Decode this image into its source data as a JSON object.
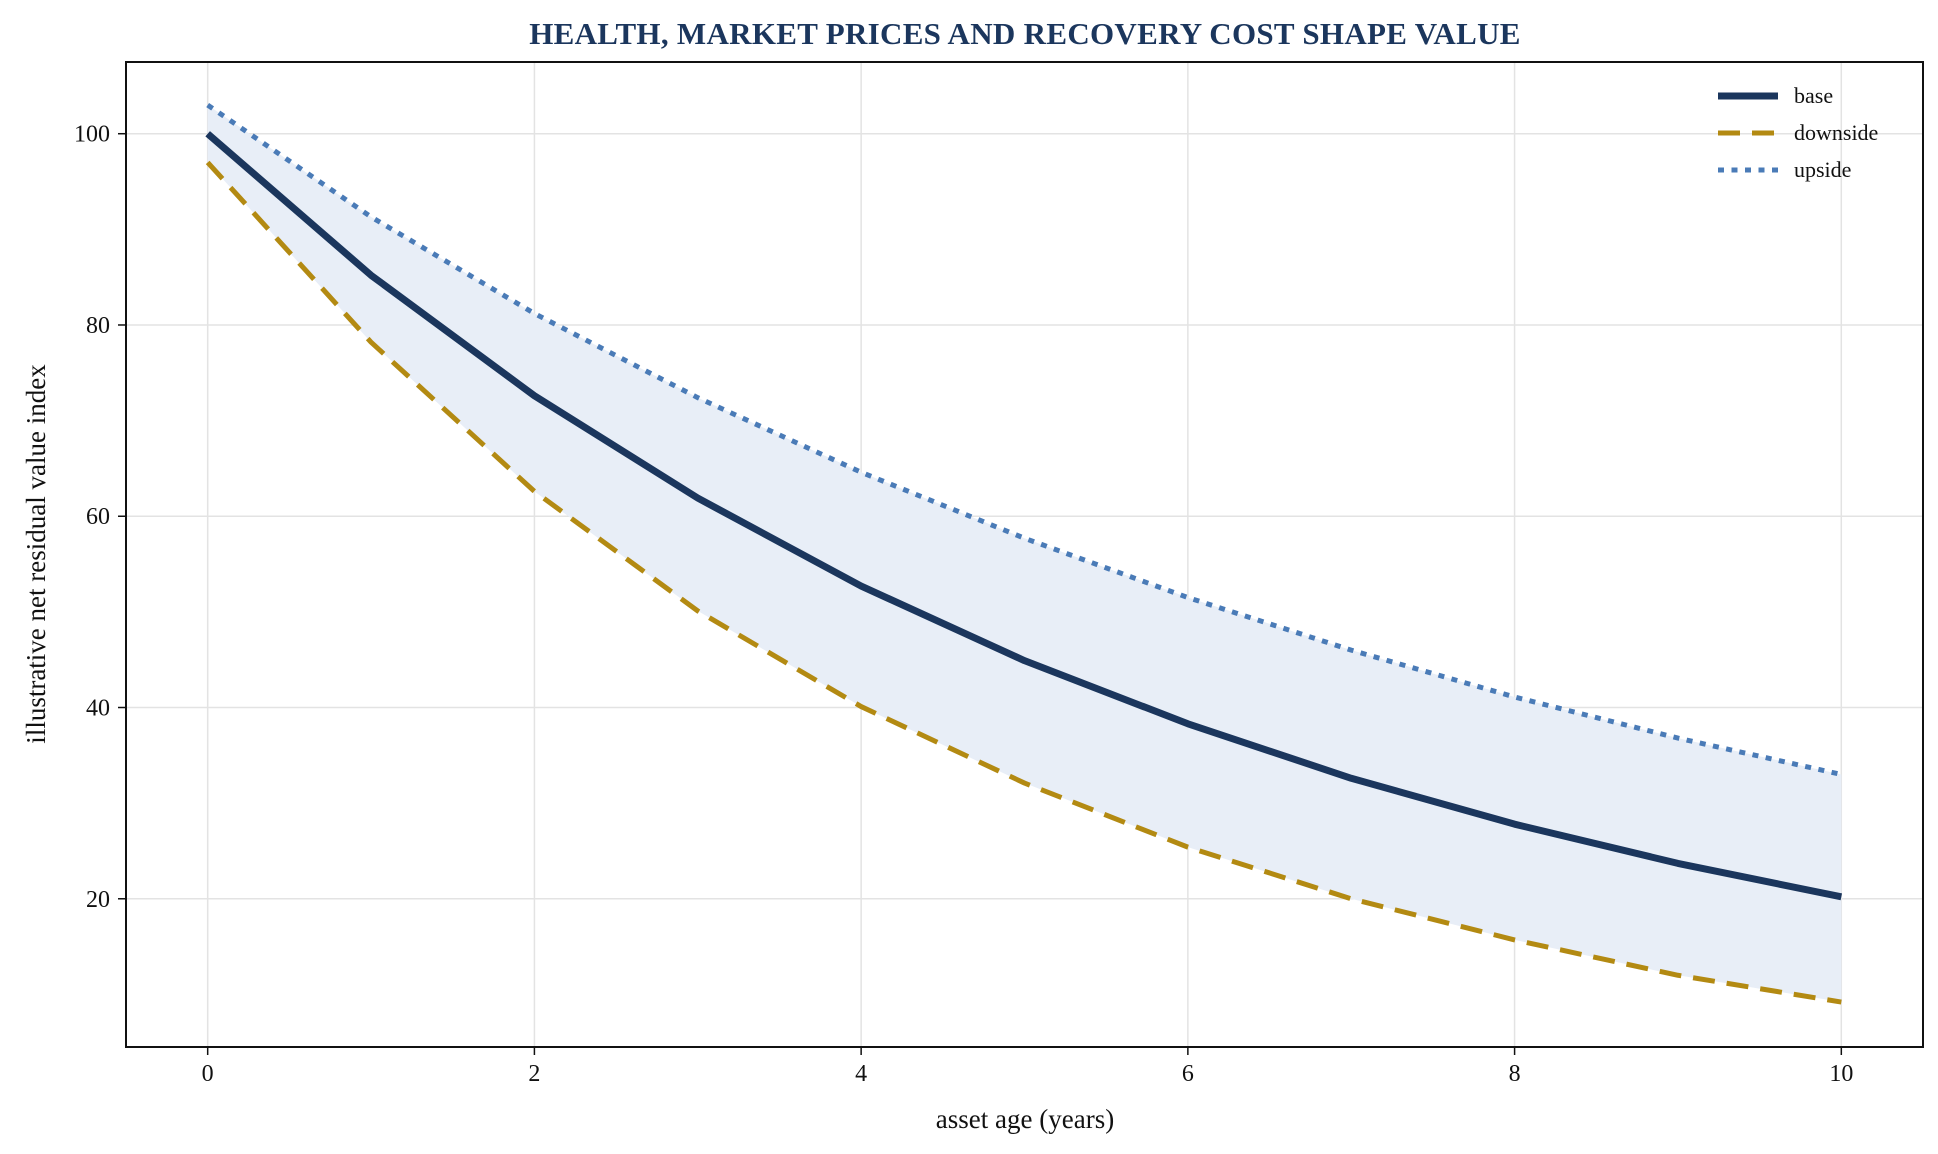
{
  "chart_data": {
    "type": "line",
    "title": "HEALTH, MARKET PRICES AND RECOVERY COST SHAPE VALUE",
    "xlabel": "asset age (years)",
    "ylabel": "illustrative net residual value index",
    "x": [
      0,
      1,
      2,
      3,
      4,
      5,
      6,
      7,
      8,
      9,
      10
    ],
    "xlim": [
      -0.5,
      10.5
    ],
    "ylim": [
      4.5,
      107.5
    ],
    "xticks": [
      0,
      2,
      4,
      6,
      8,
      10
    ],
    "yticks": [
      20,
      40,
      60,
      80,
      100
    ],
    "grid": true,
    "legend_position": "top-right",
    "band": {
      "between": [
        "downside",
        "upside"
      ],
      "color": "#e8eef7"
    },
    "series": [
      {
        "name": "base",
        "style": "solid",
        "color": "#1b365d",
        "values": [
          100,
          85.2,
          72.6,
          61.9,
          52.7,
          44.9,
          38.3,
          32.6,
          27.8,
          23.7,
          20.2
        ]
      },
      {
        "name": "downside",
        "style": "dashed",
        "color": "#b38a12",
        "values": [
          97,
          78.2,
          62.6,
          50.1,
          40.1,
          32.1,
          25.4,
          20.0,
          15.7,
          12.0,
          9.2
        ]
      },
      {
        "name": "upside",
        "style": "dotted",
        "color": "#4a7bb7",
        "values": [
          103,
          91.3,
          81.2,
          72.4,
          64.6,
          57.7,
          51.5,
          46.0,
          41.1,
          36.8,
          33.0
        ]
      }
    ]
  }
}
